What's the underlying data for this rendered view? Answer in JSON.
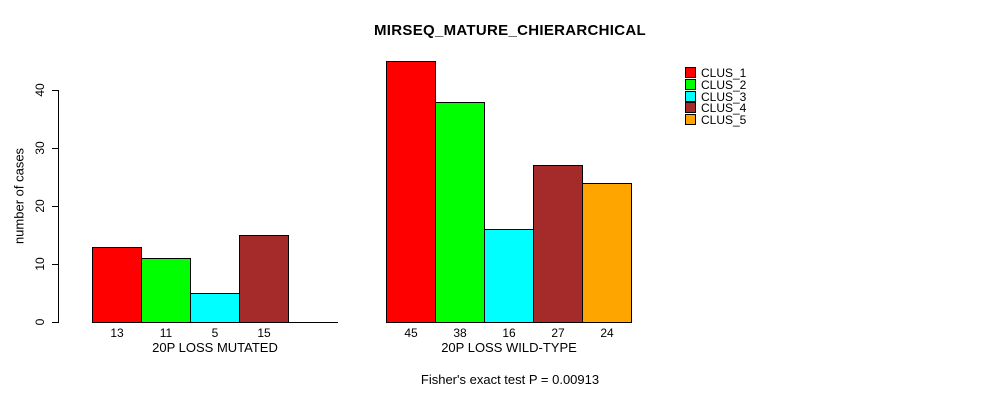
{
  "chart_data": {
    "type": "bar",
    "title": "MIRSEQ_MATURE_CHIERARCHICAL",
    "ylabel": "number of cases",
    "ylim": [
      0,
      45
    ],
    "yticks": [
      0,
      10,
      20,
      30,
      40
    ],
    "grid": false,
    "legend": {
      "position": "top-right",
      "entries": [
        {
          "name": "CLUS_1",
          "color": "#FF0000"
        },
        {
          "name": "CLUS_2",
          "color": "#00FF00"
        },
        {
          "name": "CLUS_3",
          "color": "#00FFFF"
        },
        {
          "name": "CLUS_4",
          "color": "#A52A2A"
        },
        {
          "name": "CLUS_5",
          "color": "#FFA500"
        }
      ]
    },
    "groups": [
      {
        "label": "20P LOSS MUTATED",
        "values": [
          13,
          11,
          5,
          15,
          0
        ],
        "bar_labels": [
          "13",
          "11",
          "5",
          "15",
          ""
        ]
      },
      {
        "label": "20P LOSS WILD-TYPE",
        "values": [
          45,
          38,
          16,
          27,
          24
        ],
        "bar_labels": [
          "45",
          "38",
          "16",
          "27",
          "24"
        ]
      }
    ],
    "caption": "Fisher's exact test P = 0.00913"
  }
}
